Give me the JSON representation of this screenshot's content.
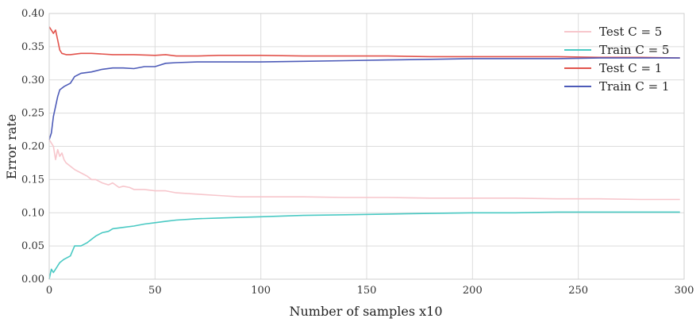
{
  "chart_data": {
    "type": "line",
    "title": "",
    "xlabel": "Number of samples x10",
    "ylabel": "Error rate",
    "xlim": [
      0,
      300
    ],
    "ylim": [
      0,
      0.4
    ],
    "xticks": [
      0,
      50,
      100,
      150,
      200,
      250,
      300
    ],
    "yticks": [
      "0.00",
      "0.05",
      "0.10",
      "0.15",
      "0.20",
      "0.25",
      "0.30",
      "0.35",
      "0.40"
    ],
    "grid": true,
    "legend_position": "top-right",
    "series": [
      {
        "name": "Test C = 5",
        "color": "#f7c6cc",
        "x": [
          0,
          2,
          3,
          4,
          5,
          6,
          7,
          8,
          10,
          12,
          15,
          18,
          20,
          22,
          25,
          28,
          30,
          33,
          35,
          38,
          40,
          45,
          50,
          55,
          60,
          70,
          80,
          90,
          100,
          120,
          140,
          160,
          180,
          200,
          220,
          240,
          260,
          280,
          298
        ],
        "y": [
          0.21,
          0.2,
          0.18,
          0.195,
          0.185,
          0.19,
          0.18,
          0.175,
          0.17,
          0.165,
          0.16,
          0.155,
          0.15,
          0.15,
          0.145,
          0.142,
          0.145,
          0.138,
          0.14,
          0.138,
          0.135,
          0.135,
          0.133,
          0.133,
          0.13,
          0.128,
          0.126,
          0.124,
          0.124,
          0.124,
          0.123,
          0.123,
          0.122,
          0.122,
          0.122,
          0.121,
          0.121,
          0.12,
          0.12
        ]
      },
      {
        "name": "Train C = 5",
        "color": "#49c9c3",
        "x": [
          0,
          1,
          2,
          3,
          5,
          7,
          10,
          12,
          15,
          18,
          20,
          22,
          25,
          28,
          30,
          35,
          40,
          45,
          50,
          55,
          60,
          70,
          80,
          90,
          100,
          120,
          140,
          160,
          180,
          200,
          220,
          240,
          260,
          280,
          298
        ],
        "y": [
          0.0,
          0.015,
          0.01,
          0.015,
          0.025,
          0.03,
          0.035,
          0.05,
          0.05,
          0.055,
          0.06,
          0.065,
          0.07,
          0.072,
          0.076,
          0.078,
          0.08,
          0.083,
          0.085,
          0.087,
          0.089,
          0.091,
          0.092,
          0.093,
          0.094,
          0.096,
          0.097,
          0.098,
          0.099,
          0.1,
          0.1,
          0.101,
          0.101,
          0.101,
          0.101
        ]
      },
      {
        "name": "Test C = 1",
        "color": "#e2534c",
        "x": [
          0,
          1,
          2,
          3,
          4,
          5,
          6,
          8,
          10,
          15,
          20,
          30,
          40,
          50,
          55,
          60,
          70,
          80,
          100,
          120,
          140,
          160,
          180,
          200,
          220,
          240,
          260,
          280,
          298
        ],
        "y": [
          0.38,
          0.375,
          0.37,
          0.375,
          0.36,
          0.345,
          0.34,
          0.338,
          0.338,
          0.34,
          0.34,
          0.338,
          0.338,
          0.337,
          0.338,
          0.336,
          0.336,
          0.337,
          0.337,
          0.336,
          0.336,
          0.336,
          0.335,
          0.335,
          0.335,
          0.335,
          0.334,
          0.334,
          0.333
        ]
      },
      {
        "name": "Train C = 1",
        "color": "#4d5bb8",
        "x": [
          0,
          1,
          2,
          3,
          4,
          5,
          7,
          10,
          12,
          15,
          20,
          25,
          30,
          35,
          40,
          45,
          50,
          55,
          60,
          70,
          80,
          100,
          120,
          140,
          160,
          180,
          200,
          220,
          240,
          260,
          280,
          298
        ],
        "y": [
          0.21,
          0.22,
          0.245,
          0.26,
          0.275,
          0.285,
          0.29,
          0.295,
          0.305,
          0.31,
          0.312,
          0.316,
          0.318,
          0.318,
          0.317,
          0.32,
          0.32,
          0.325,
          0.326,
          0.327,
          0.327,
          0.327,
          0.328,
          0.329,
          0.33,
          0.331,
          0.332,
          0.332,
          0.332,
          0.333,
          0.333,
          0.333
        ]
      }
    ]
  }
}
